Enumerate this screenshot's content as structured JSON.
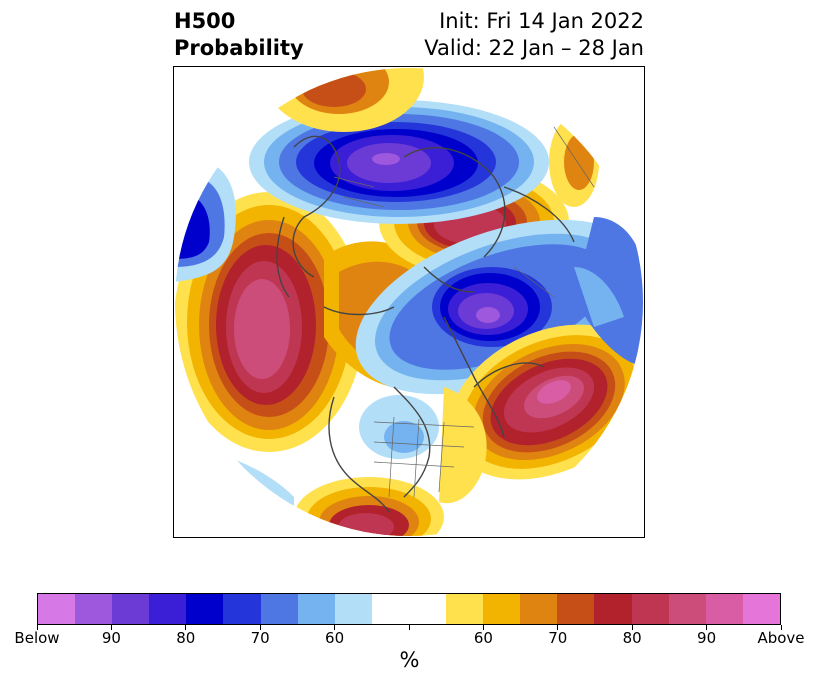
{
  "title": {
    "left_line1": "H500",
    "left_line2": "Probability",
    "right_line1": "Init: Fri 14 Jan 2022",
    "right_line2": "Valid: 22 Jan – 28 Jan"
  },
  "colorbar": {
    "unit": "%",
    "colors": [
      "#d678e6",
      "#9d58dd",
      "#6c3bd6",
      "#3b1fd6",
      "#0000cc",
      "#2436d9",
      "#4f77e3",
      "#74b3f0",
      "#b2def8",
      "#ffffff",
      "#ffffff",
      "#ffe14d",
      "#f2b400",
      "#df8410",
      "#c64f17",
      "#b2222c",
      "#bf3652",
      "#cc4d79",
      "#d85da4",
      "#e575d8"
    ],
    "tick_labels": [
      "Below",
      "90",
      "80",
      "70",
      "60",
      "",
      "60",
      "70",
      "80",
      "90",
      "Above"
    ]
  },
  "colors": {
    "below_strong": "#0000cc",
    "above_strong": "#b2222c",
    "coastline": "#444444"
  }
}
